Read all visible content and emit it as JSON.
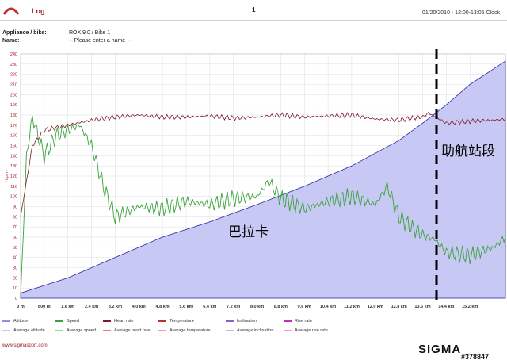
{
  "header": {
    "title": "Log",
    "page_number": "1",
    "date_range": "01/20/2010 - 12:00-13:05 Clock"
  },
  "info": [
    {
      "label": "Appliance / bike:",
      "value": "ROX 9.0 / Bike 1"
    },
    {
      "label": "Name:",
      "value": "-- Please enter a name --"
    }
  ],
  "chart_data": {
    "type": "line",
    "y_label": "- bpm -",
    "y_range": [
      0,
      240
    ],
    "y_ticks": [
      "0",
      "10",
      "20",
      "30",
      "40",
      "50",
      "60",
      "70",
      "80",
      "90",
      "100",
      "110",
      "120",
      "130",
      "140",
      "150",
      "160",
      "170",
      "180",
      "190",
      "200",
      "210",
      "220",
      "230",
      "240"
    ],
    "x_range_km": [
      0,
      16.4
    ],
    "x_ticks": [
      "0 m",
      "800 m",
      "1,6 km",
      "2,4 km",
      "3,2 km",
      "4,0 km",
      "4,8 km",
      "5,6 km",
      "6,4 km",
      "7,2 km",
      "8,0 km",
      "8,8 km",
      "9,6 km",
      "10,4 km",
      "11,2 km",
      "12,0 km",
      "12,8 km",
      "13,6 km",
      "14,4 km",
      "15,2 km"
    ],
    "series": [
      {
        "name": "Altitude",
        "color": "#c8c8f5",
        "x_km": [
          0,
          1.6,
          3.2,
          4.8,
          6.4,
          8.0,
          9.6,
          11.2,
          12.8,
          13.6,
          14.4,
          15.2,
          16.4
        ],
        "values": [
          5,
          20,
          40,
          60,
          75,
          92,
          110,
          130,
          155,
          172,
          190,
          210,
          233
        ]
      },
      {
        "name": "Heart rate",
        "color": "#7a1a2a",
        "x_km": [
          0,
          0.4,
          0.8,
          1.6,
          2.4,
          3.2,
          4.0,
          4.8,
          5.6,
          6.4,
          7.2,
          8.0,
          8.8,
          9.6,
          10.4,
          11.2,
          12.0,
          12.8,
          13.2,
          13.6,
          13.8,
          14.4,
          15.2,
          16.0,
          16.4
        ],
        "values": [
          80,
          150,
          165,
          170,
          175,
          178,
          180,
          178,
          178,
          179,
          177,
          178,
          180,
          178,
          179,
          180,
          176,
          175,
          177,
          178,
          182,
          172,
          174,
          175,
          176
        ]
      },
      {
        "name": "Speed",
        "color": "#3aa33a",
        "x_km": [
          0,
          0.2,
          0.4,
          0.8,
          1.2,
          1.6,
          2.0,
          2.4,
          2.8,
          3.2,
          4.0,
          4.8,
          5.6,
          6.4,
          7.2,
          8.0,
          8.4,
          8.8,
          9.6,
          10.4,
          11.2,
          12.0,
          12.4,
          12.8,
          13.2,
          13.6,
          14.0,
          14.4,
          15.2,
          16.0,
          16.4
        ],
        "values": [
          0,
          140,
          178,
          140,
          160,
          165,
          170,
          150,
          110,
          80,
          90,
          88,
          95,
          92,
          98,
          100,
          115,
          98,
          88,
          95,
          100,
          92,
          110,
          80,
          70,
          62,
          58,
          45,
          42,
          50,
          60
        ]
      }
    ],
    "annotations": [
      "巴拉卡",
      "助航站段"
    ]
  },
  "legend": [
    {
      "label": "Altitude",
      "color": "#9090e0"
    },
    {
      "label": "Speed",
      "color": "#3aa33a"
    },
    {
      "label": "Heart rate",
      "color": "#7a1a2a"
    },
    {
      "label": "Temperature",
      "color": "#c0302a"
    },
    {
      "label": "Inclination",
      "color": "#8a60c8"
    },
    {
      "label": "Rise rate",
      "color": "#c030c0"
    },
    {
      "label": "Average altitude",
      "color": "#c8c8f0"
    },
    {
      "label": "Average speed",
      "color": "#90d890"
    },
    {
      "label": "Average heart rate",
      "color": "#c08888"
    },
    {
      "label": "Average temperature",
      "color": "#e8a0a0"
    },
    {
      "label": "Average inclination",
      "color": "#c8b0e8"
    },
    {
      "label": "Average rise rate",
      "color": "#e8a0e8"
    }
  ],
  "footer": {
    "url": "www.sigmasport.com",
    "brand": "SIGMA",
    "watermark_id": "#378847"
  }
}
